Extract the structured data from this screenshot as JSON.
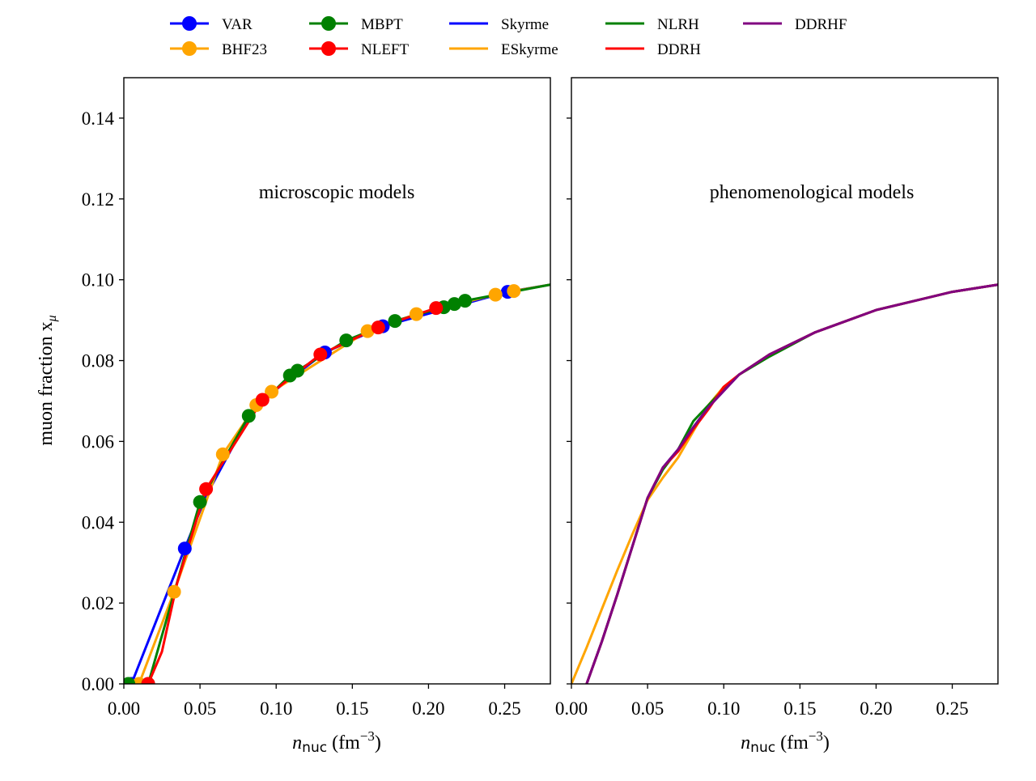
{
  "legend": {
    "entries": [
      {
        "label": "VAR",
        "color": "#0000ff",
        "marker": true
      },
      {
        "label": "BHF23",
        "color": "#ffa500",
        "marker": true
      },
      {
        "label": "MBPT",
        "color": "#008000",
        "marker": true
      },
      {
        "label": "NLEFT",
        "color": "#ff0000",
        "marker": true
      },
      {
        "label": "Skyrme",
        "color": "#0000ff",
        "marker": false
      },
      {
        "label": "ESkyrme",
        "color": "#ffa500",
        "marker": false
      },
      {
        "label": "NLRH",
        "color": "#008000",
        "marker": false
      },
      {
        "label": "DDRH",
        "color": "#ff0000",
        "marker": false
      },
      {
        "label": "DDRHF",
        "color": "#800080",
        "marker": false
      }
    ]
  },
  "chart_data": [
    {
      "type": "line",
      "annotation": "microscopic models",
      "xlabel_base": "n",
      "xlabel_sub": "nuc",
      "xlabel_unit": "(fm",
      "xlabel_exp": "−3",
      "xlabel_close": ")",
      "ylabel": "muon fraction x",
      "ylabel_sub": "μ",
      "xlim": [
        0,
        0.28
      ],
      "ylim": [
        0,
        0.15
      ],
      "xticks": [
        "0.00",
        "0.05",
        "0.10",
        "0.15",
        "0.20",
        "0.25"
      ],
      "yticks": [
        "0.00",
        "0.02",
        "0.04",
        "0.06",
        "0.08",
        "0.10",
        "0.12",
        "0.14"
      ],
      "series": [
        {
          "name": "VAR",
          "color": "#0000ff",
          "marker": true,
          "x": [
            0.0,
            0.005,
            0.04,
            0.054,
            0.082,
            0.09,
            0.132,
            0.17,
            0.252,
            0.28
          ],
          "y": [
            0.0,
            0.0,
            0.0335,
            0.0465,
            0.066,
            0.07,
            0.082,
            0.0885,
            0.097,
            0.0988
          ],
          "mx": [
            0.005,
            0.04,
            0.132,
            0.17,
            0.252
          ],
          "my": [
            0.0,
            0.0335,
            0.082,
            0.0885,
            0.097
          ]
        },
        {
          "name": "BHF23",
          "color": "#ffa500",
          "marker": true,
          "x": [
            0.01,
            0.033,
            0.065,
            0.087,
            0.097,
            0.16,
            0.192,
            0.244,
            0.256,
            0.28
          ],
          "y": [
            0.0,
            0.0228,
            0.0568,
            0.069,
            0.0723,
            0.0873,
            0.0915,
            0.0963,
            0.0972,
            0.0988
          ],
          "mx": [
            0.01,
            0.033,
            0.065,
            0.087,
            0.097,
            0.16,
            0.192,
            0.244,
            0.256
          ],
          "my": [
            0.0,
            0.0228,
            0.0568,
            0.069,
            0.0723,
            0.0873,
            0.0915,
            0.0963,
            0.0972
          ]
        },
        {
          "name": "MBPT",
          "color": "#008000",
          "marker": true,
          "x": [
            0.003,
            0.016,
            0.05,
            0.082,
            0.109,
            0.114,
            0.146,
            0.178,
            0.21,
            0.217,
            0.224,
            0.28
          ],
          "y": [
            0.0,
            0.0,
            0.045,
            0.0663,
            0.0763,
            0.0775,
            0.085,
            0.0898,
            0.0932,
            0.094,
            0.0948,
            0.0988
          ],
          "mx": [
            0.003,
            0.016,
            0.05,
            0.082,
            0.109,
            0.114,
            0.146,
            0.178,
            0.21,
            0.217,
            0.224
          ],
          "my": [
            0.0,
            0.0,
            0.045,
            0.0663,
            0.0763,
            0.0775,
            0.085,
            0.0898,
            0.0932,
            0.094,
            0.0948
          ]
        },
        {
          "name": "NLEFT",
          "color": "#ff0000",
          "marker": true,
          "x": [
            0.016,
            0.025,
            0.035,
            0.054,
            0.091,
            0.129,
            0.167,
            0.205,
            0.22
          ],
          "y": [
            0.0,
            0.008,
            0.025,
            0.0482,
            0.0703,
            0.0815,
            0.0882,
            0.093,
            0.094
          ],
          "mx": [
            0.016,
            0.054,
            0.091,
            0.129,
            0.167,
            0.205
          ],
          "my": [
            0.0,
            0.0482,
            0.0703,
            0.0815,
            0.0882,
            0.093
          ]
        }
      ]
    },
    {
      "type": "line",
      "annotation": "phenomenological models",
      "xlabel_base": "n",
      "xlabel_sub": "nuc",
      "xlabel_unit": "(fm",
      "xlabel_exp": "−3",
      "xlabel_close": ")",
      "xlim": [
        0,
        0.28
      ],
      "ylim": [
        0,
        0.15
      ],
      "xticks": [
        "0.00",
        "0.05",
        "0.10",
        "0.15",
        "0.20",
        "0.25"
      ],
      "series": [
        {
          "name": "Skyrme",
          "color": "#0000ff",
          "marker": false,
          "x": [
            0.01,
            0.02,
            0.03,
            0.04,
            0.05,
            0.06,
            0.07,
            0.08,
            0.09,
            0.1,
            0.11,
            0.13,
            0.16,
            0.2,
            0.25,
            0.28
          ],
          "y": [
            0.0,
            0.0105,
            0.022,
            0.034,
            0.046,
            0.0535,
            0.058,
            0.0635,
            0.0685,
            0.0725,
            0.0765,
            0.0815,
            0.087,
            0.0925,
            0.097,
            0.0988
          ]
        },
        {
          "name": "ESkyrme",
          "color": "#ffa500",
          "marker": false,
          "x": [
            0.0,
            0.01,
            0.02,
            0.03,
            0.04,
            0.05,
            0.06,
            0.07,
            0.08,
            0.09,
            0.1,
            0.11,
            0.13,
            0.16,
            0.2,
            0.25,
            0.28
          ],
          "y": [
            0.0,
            0.009,
            0.0185,
            0.028,
            0.037,
            0.0455,
            0.051,
            0.056,
            0.0625,
            0.069,
            0.0735,
            0.0765,
            0.0815,
            0.087,
            0.0925,
            0.097,
            0.0988
          ]
        },
        {
          "name": "NLRH",
          "color": "#008000",
          "marker": false,
          "x": [
            0.01,
            0.02,
            0.03,
            0.04,
            0.05,
            0.06,
            0.07,
            0.08,
            0.09,
            0.1,
            0.11,
            0.13,
            0.16,
            0.2,
            0.25,
            0.28
          ],
          "y": [
            0.0,
            0.0105,
            0.022,
            0.034,
            0.046,
            0.053,
            0.058,
            0.065,
            0.069,
            0.073,
            0.0765,
            0.081,
            0.087,
            0.0925,
            0.097,
            0.0988
          ]
        },
        {
          "name": "DDRH",
          "color": "#ff0000",
          "marker": false,
          "x": [
            0.01,
            0.02,
            0.03,
            0.04,
            0.05,
            0.06,
            0.07,
            0.08,
            0.09,
            0.1,
            0.11,
            0.13,
            0.16,
            0.2,
            0.25,
            0.28
          ],
          "y": [
            0.0,
            0.0105,
            0.022,
            0.034,
            0.046,
            0.0535,
            0.0575,
            0.063,
            0.068,
            0.0735,
            0.0765,
            0.0815,
            0.087,
            0.0925,
            0.097,
            0.0988
          ]
        },
        {
          "name": "DDRHF",
          "color": "#800080",
          "marker": false,
          "x": [
            0.01,
            0.02,
            0.03,
            0.04,
            0.05,
            0.06,
            0.07,
            0.08,
            0.09,
            0.1,
            0.11,
            0.13,
            0.16,
            0.2,
            0.25,
            0.28
          ],
          "y": [
            0.0,
            0.0105,
            0.022,
            0.034,
            0.046,
            0.0535,
            0.058,
            0.0635,
            0.0685,
            0.0725,
            0.0765,
            0.0815,
            0.087,
            0.0925,
            0.097,
            0.0988
          ]
        }
      ]
    }
  ]
}
